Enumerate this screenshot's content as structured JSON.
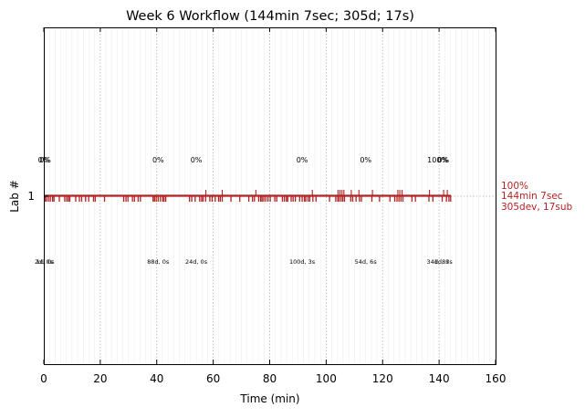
{
  "colors": {
    "accent": "#b22222",
    "grid": "#b0b0b0",
    "minor_grid": "#eeeeee"
  },
  "chart_data": {
    "type": "timeline",
    "title": "Week 6 Workflow (144min 7sec; 305d; 17s)",
    "xlabel": "Time (min)",
    "ylabel": "Lab #",
    "xlim": [
      0,
      160
    ],
    "x_ticks": [
      "0",
      "20",
      "40",
      "60",
      "80",
      "100",
      "120",
      "140",
      "160"
    ],
    "y_ticks": [
      "1"
    ],
    "grid": "vertical dotted at session boundaries and major ticks",
    "lab": 1,
    "timeline_end": 144.1,
    "session_boundaries": [
      0,
      39.5,
      53,
      90.5,
      113,
      140
    ],
    "session_markers": [
      {
        "x": 0,
        "pct": "0%",
        "seg": "2d, 0s"
      },
      {
        "x": 0.5,
        "pct": "0%",
        "seg": "1d, 0s"
      },
      {
        "x": 40.5,
        "pct": "0%",
        "seg": "88d, 0s"
      },
      {
        "x": 54,
        "pct": "0%",
        "seg": "24d, 0s"
      },
      {
        "x": 91.5,
        "pct": "0%",
        "seg": "100d, 3s"
      },
      {
        "x": 114,
        "pct": "0%",
        "seg": "54d, 6s"
      },
      {
        "x": 139.5,
        "pct": "100%",
        "seg": "34d, 8s"
      },
      {
        "x": 141.5,
        "pct": "0%",
        "seg": "1d, 3s"
      }
    ],
    "dev_events": [
      0.4,
      0.9,
      1.6,
      2.3,
      3.1,
      3.6,
      5.5,
      7.4,
      8.1,
      8.7,
      9.2,
      11.3,
      12.6,
      13.4,
      14.8,
      15.9,
      17.6,
      18.2,
      21.5,
      28.3,
      29.1,
      29.8,
      31.4,
      32.1,
      33.4,
      34.2,
      38.7,
      39.2,
      39.8,
      40.5,
      41.3,
      42.1,
      42.6,
      43.2,
      51.6,
      52.4,
      53.6,
      55.2,
      55.9,
      56.4,
      57.3,
      58.8,
      59.6,
      60.7,
      61.9,
      62.5,
      63.2,
      66.3,
      69.4,
      72.6,
      73.9,
      74.6,
      76.1,
      76.8,
      77.3,
      77.9,
      78.6,
      79.4,
      80.2,
      81.8,
      82.5,
      84.5,
      85.2,
      85.9,
      86.4,
      87.6,
      88.3,
      89.1,
      90.6,
      91.5,
      92.3,
      92.8,
      93.6,
      94.2,
      95.3,
      96.4,
      101.2,
      103.4,
      104.1,
      104.6,
      105.3,
      105.9,
      106.5,
      108.7,
      109.4,
      110.6,
      111.8,
      112.5,
      116.2,
      118.9,
      122.6,
      124.3,
      125.1,
      125.8,
      126.5,
      127.2,
      130.4,
      131.6,
      136.4,
      137.8,
      141.1,
      142.6,
      143.5
    ],
    "submissions": [
      57.4,
      63.2,
      75.1,
      95.1,
      104.2,
      104.9,
      105.6,
      106.3,
      108.9,
      111.6,
      116.4,
      125.4,
      126.1,
      126.9,
      136.6,
      141.6,
      142.9
    ],
    "summary": [
      "100%",
      "144min 7sec",
      "305dev, 17sub"
    ]
  }
}
